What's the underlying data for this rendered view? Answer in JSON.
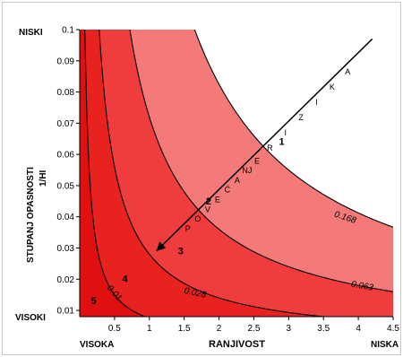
{
  "chart_data": {
    "type": "contour",
    "xlabel": "RANJIVOST",
    "ylabel": "STUPANJ OPASNOSTI",
    "ylabel_sub": "1/HI",
    "xlim": [
      0,
      4.5
    ],
    "ylim": [
      0.008,
      0.1
    ],
    "x_ticks": [
      0.5,
      1,
      1.5,
      2,
      2.5,
      3,
      3.5,
      4,
      4.5
    ],
    "x_tick_labels": [
      "0.5",
      "1",
      "1.5",
      "2",
      "2.5",
      "3",
      "3.5",
      "4",
      "4.5"
    ],
    "y_ticks": [
      0.01,
      0.02,
      0.03,
      0.04,
      0.05,
      0.06,
      0.07,
      0.08,
      0.09,
      0.1
    ],
    "y_tick_labels": [
      "0.01",
      "0.02",
      "0.03",
      "0.04",
      "0.05",
      "0.06",
      "0.07",
      "0.08",
      "0.09",
      "0.1"
    ],
    "y_end_labels": {
      "top": "NISKI",
      "bottom": "VISOKI"
    },
    "x_end_labels": {
      "left": "VISOKA",
      "right": "NISKA"
    },
    "contour_function": "risk = HI / V = 1 / (x * y)",
    "contours": [
      {
        "level": 0.01,
        "label": "0.01"
      },
      {
        "level": 0.028,
        "label": "0.028"
      },
      {
        "level": 0.063,
        "label": "0.063"
      },
      {
        "level": 0.168,
        "label": "0.168"
      }
    ],
    "zones": [
      {
        "label": "1",
        "color": "#ffffff"
      },
      {
        "label": "2",
        "color": "#f47a7a"
      },
      {
        "label": "3",
        "color": "#ef3d3d"
      },
      {
        "label": "4",
        "color": "#e8231f"
      },
      {
        "label": "5",
        "color": "#e01010"
      }
    ],
    "zone_label_positions": [
      {
        "label": "1",
        "x": 2.9,
        "y": 0.063
      },
      {
        "label": "2",
        "x": 1.85,
        "y": 0.044
      },
      {
        "label": "3",
        "x": 1.45,
        "y": 0.028
      },
      {
        "label": "4",
        "x": 0.65,
        "y": 0.019
      },
      {
        "label": "5",
        "x": 0.2,
        "y": 0.012
      }
    ],
    "contour_label_positions": [
      {
        "label": "0.168",
        "x": 3.8,
        "y": 0.039
      },
      {
        "label": "0.063",
        "x": 4.05,
        "y": 0.017
      },
      {
        "label": "0.028",
        "x": 1.65,
        "y": 0.0148
      },
      {
        "label": "0.01",
        "x": 0.47,
        "y": 0.015
      }
    ],
    "arrow": {
      "from": [
        4.2,
        0.097
      ],
      "to": [
        1.1,
        0.029
      ]
    },
    "arrow_label_up": [
      "R",
      "I",
      "Z",
      "I",
      "K",
      "A"
    ],
    "arrow_label_down": [
      "E",
      "NJ",
      "A",
      "Ć",
      "E",
      "V",
      "O",
      "P"
    ],
    "grid": false
  }
}
